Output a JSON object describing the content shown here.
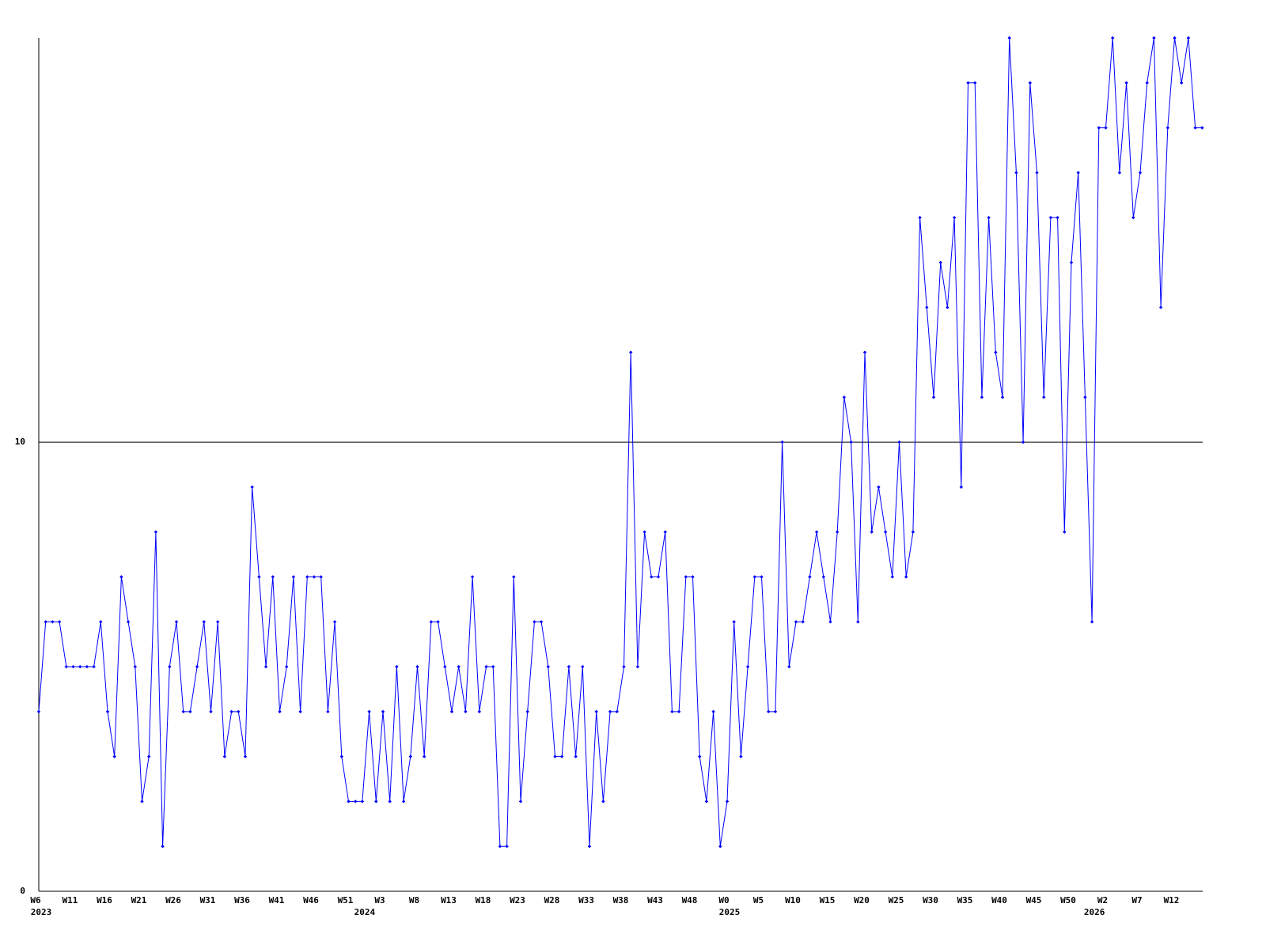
{
  "chart_data": {
    "type": "line",
    "color": "#0000ff",
    "grid": true,
    "categories": [
      "W6",
      null,
      null,
      null,
      null,
      "W11",
      null,
      null,
      null,
      null,
      "W16",
      null,
      null,
      null,
      null,
      "W21",
      null,
      null,
      null,
      null,
      "W26",
      null,
      null,
      null,
      null,
      "W31",
      null,
      null,
      null,
      null,
      "W36",
      null,
      null,
      null,
      null,
      "W41",
      null,
      null,
      null,
      null,
      "W46",
      null,
      null,
      null,
      null,
      "W51",
      null,
      null,
      null,
      null,
      "W3",
      null,
      null,
      null,
      null,
      "W8",
      null,
      null,
      null,
      null,
      "W13",
      null,
      null,
      null,
      null,
      "W18",
      null,
      null,
      null,
      null,
      "W23",
      null,
      null,
      null,
      null,
      "W28",
      null,
      null,
      null,
      null,
      "W33",
      null,
      null,
      null,
      null,
      "W38",
      null,
      null,
      null,
      null,
      "W43",
      null,
      null,
      null,
      null,
      "W48",
      null,
      null,
      null,
      null,
      "W0",
      null,
      null,
      null,
      null,
      "W5",
      null,
      null,
      null,
      null,
      "W10",
      null,
      null,
      null,
      null,
      "W15",
      null,
      null,
      null,
      null,
      "W20",
      null,
      null,
      null,
      null,
      "W25",
      null,
      null,
      null,
      null,
      "W30",
      null,
      null,
      null,
      null,
      "W35",
      null,
      null,
      null,
      null,
      "W40",
      null,
      null,
      null,
      null,
      "W45",
      null,
      null,
      null,
      null,
      "W50",
      null,
      null,
      null,
      null,
      "W2",
      null,
      null,
      null,
      null,
      "W7",
      null,
      null,
      null,
      null,
      "W12",
      null,
      null,
      null,
      null
    ],
    "category_years": [
      "2023",
      null,
      null,
      null,
      null,
      null,
      null,
      null,
      null,
      null,
      null,
      null,
      null,
      null,
      null,
      null,
      null,
      null,
      null,
      null,
      null,
      null,
      null,
      null,
      null,
      null,
      null,
      null,
      null,
      null,
      null,
      null,
      null,
      null,
      null,
      null,
      null,
      null,
      null,
      null,
      null,
      null,
      null,
      null,
      null,
      null,
      null,
      "2024",
      null,
      null,
      null,
      null,
      null,
      null,
      null,
      null,
      null,
      null,
      null,
      null,
      null,
      null,
      null,
      null,
      null,
      null,
      null,
      null,
      null,
      null,
      null,
      null,
      null,
      null,
      null,
      null,
      null,
      null,
      null,
      null,
      null,
      null,
      null,
      null,
      null,
      null,
      null,
      null,
      null,
      null,
      null,
      null,
      null,
      null,
      null,
      null,
      null,
      null,
      null,
      null,
      "2025",
      null,
      null,
      null,
      null,
      null,
      null,
      null,
      null,
      null,
      null,
      null,
      null,
      null,
      null,
      null,
      null,
      null,
      null,
      null,
      null,
      null,
      null,
      null,
      null,
      null,
      null,
      null,
      null,
      null,
      null,
      null,
      null,
      null,
      null,
      null,
      null,
      null,
      null,
      null,
      null,
      null,
      null,
      null,
      null,
      null,
      null,
      null,
      null,
      null,
      null,
      null,
      null,
      "2026",
      null,
      null,
      null,
      null,
      null,
      null,
      null,
      null,
      null,
      null,
      null,
      null,
      null,
      null,
      null,
      null
    ],
    "values": [
      4,
      6,
      6,
      6,
      5,
      5,
      5,
      5,
      5,
      6,
      4,
      3,
      7,
      6,
      5,
      2,
      3,
      8,
      1,
      5,
      6,
      4,
      4,
      5,
      6,
      4,
      6,
      3,
      4,
      4,
      3,
      9,
      7,
      5,
      7,
      4,
      5,
      7,
      4,
      7,
      7,
      7,
      4,
      6,
      3,
      2,
      2,
      2,
      4,
      2,
      4,
      2,
      5,
      2,
      3,
      5,
      3,
      6,
      6,
      5,
      4,
      5,
      4,
      7,
      4,
      5,
      5,
      1,
      1,
      7,
      2,
      4,
      6,
      6,
      5,
      3,
      3,
      5,
      3,
      5,
      1,
      4,
      2,
      4,
      4,
      5,
      12,
      5,
      8,
      7,
      7,
      8,
      4,
      4,
      7,
      7,
      3,
      2,
      4,
      1,
      2,
      6,
      3,
      5,
      7,
      7,
      4,
      4,
      10,
      5,
      6,
      6,
      7,
      8,
      7,
      6,
      8,
      11,
      10,
      6,
      12,
      8,
      9,
      8,
      7,
      10,
      7,
      8,
      15,
      13,
      11,
      14,
      13,
      15,
      9,
      18,
      18,
      11,
      15,
      12,
      11,
      19,
      16,
      10,
      18,
      16,
      11,
      15,
      15,
      8,
      14,
      16,
      11,
      6,
      17,
      17,
      19,
      16,
      18,
      15,
      16,
      18,
      19,
      13,
      17,
      19,
      18,
      19,
      17,
      17
    ],
    "ylim": [
      0,
      19
    ],
    "yticks": [
      0,
      10
    ]
  }
}
